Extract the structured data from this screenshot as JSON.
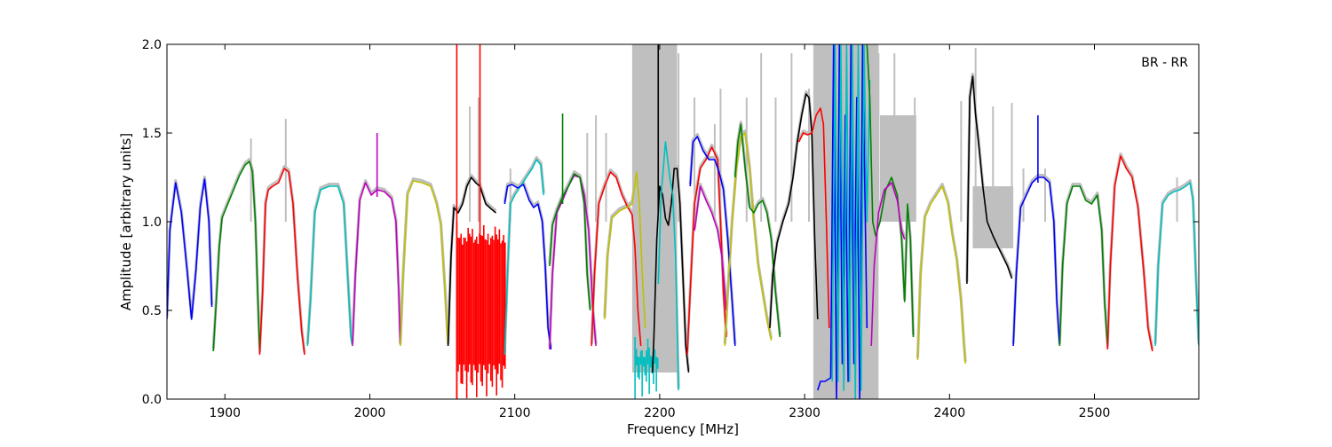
{
  "chart_data": {
    "type": "line",
    "annotation": "BR - RR",
    "xlabel": "Frequency [MHz]",
    "ylabel": "Amplitude [arbitrary units]",
    "xlim": [
      1860,
      2572
    ],
    "ylim": [
      0.0,
      2.0
    ],
    "x_ticks": [
      1900,
      2000,
      2100,
      2200,
      2300,
      2400,
      2500
    ],
    "x_tick_labels": [
      "1900",
      "2000",
      "2100",
      "2200",
      "2300",
      "2400",
      "2500"
    ],
    "y_ticks": [
      0.0,
      0.5,
      1.0,
      1.5,
      2.0
    ],
    "y_tick_labels": [
      "0.0",
      "0.5",
      "1.0",
      "1.5",
      "2.0"
    ],
    "grid": false,
    "reference_color": "#bfbfbf",
    "reference_spikes": [
      [
        1918,
        1.47
      ],
      [
        1942,
        1.58
      ],
      [
        2069,
        1.65
      ],
      [
        2075,
        1.7
      ],
      [
        2097,
        1.3
      ],
      [
        2150,
        1.5
      ],
      [
        2156,
        1.6
      ],
      [
        2163,
        1.5
      ],
      [
        2190,
        1.6
      ],
      [
        2205,
        2.0
      ],
      [
        2213,
        1.95
      ],
      [
        2224,
        1.7
      ],
      [
        2238,
        1.55
      ],
      [
        2242,
        1.75
      ],
      [
        2260,
        1.7
      ],
      [
        2270,
        1.95
      ],
      [
        2280,
        1.7
      ],
      [
        2291,
        1.95
      ],
      [
        2303,
        1.75
      ],
      [
        2351,
        1.95
      ],
      [
        2362,
        1.95
      ],
      [
        2376,
        1.7
      ],
      [
        2408,
        1.68
      ],
      [
        2418,
        1.98
      ],
      [
        2430,
        1.65
      ],
      [
        2443,
        1.67
      ],
      [
        2451,
        1.3
      ],
      [
        2466,
        1.3
      ],
      [
        2557,
        1.25
      ]
    ],
    "reference_noise_bands": [
      {
        "x": [
          2181,
          2212
        ],
        "y": [
          0.15,
          2.0
        ]
      },
      {
        "x": [
          2306,
          2351
        ],
        "y": [
          0.0,
          2.0
        ]
      },
      {
        "x": [
          2352,
          2377
        ],
        "y": [
          1.0,
          1.6
        ]
      },
      {
        "x": [
          2416,
          2444
        ],
        "y": [
          0.85,
          1.2
        ]
      }
    ],
    "noise_bands": [
      {
        "name": "",
        "color": "#ff0000",
        "x": [
          2060,
          2094
        ],
        "y": [
          0.0,
          1.0
        ]
      },
      {
        "name": "",
        "color": "#00bfbf",
        "x": [
          2183,
          2199
        ],
        "y": [
          0.0,
          0.35
        ]
      }
    ],
    "spikes": [
      {
        "color": "#ff0000",
        "x": 2060,
        "y": [
          0.0,
          2.0
        ]
      },
      {
        "color": "#ff0000",
        "x": 2076,
        "y": [
          0.2,
          2.0
        ]
      },
      {
        "color": "#bf00bf",
        "x": 2005,
        "y": [
          1.14,
          1.5
        ]
      },
      {
        "color": "#008000",
        "x": 2133,
        "y": [
          1.1,
          1.61
        ]
      },
      {
        "color": "#0000ff",
        "x": 2461,
        "y": [
          1.22,
          1.6
        ]
      },
      {
        "color": "#000000",
        "x": 2199,
        "y": [
          1.05,
          2.0
        ]
      }
    ],
    "series": [
      {
        "name": "",
        "color": "#0000ff",
        "x": [
          1860,
          1862,
          1866,
          1870,
          1874,
          1877,
          1880,
          1883,
          1886,
          1889,
          1891
        ],
        "y": [
          0.45,
          0.95,
          1.22,
          1.05,
          0.72,
          0.45,
          0.72,
          1.08,
          1.24,
          1.0,
          0.52
        ]
      },
      {
        "name": "",
        "color": "#008000",
        "x": [
          1892,
          1894,
          1896,
          1898,
          1902,
          1906,
          1910,
          1914,
          1917,
          1919,
          1921,
          1923,
          1924
        ],
        "y": [
          0.27,
          0.55,
          0.85,
          1.02,
          1.1,
          1.18,
          1.26,
          1.32,
          1.34,
          1.28,
          1.0,
          0.5,
          0.28
        ]
      },
      {
        "name": "",
        "color": "#ff0000",
        "x": [
          1924,
          1926,
          1928,
          1930,
          1933,
          1937,
          1941,
          1944,
          1947,
          1950,
          1953,
          1955
        ],
        "y": [
          0.25,
          0.6,
          1.1,
          1.18,
          1.2,
          1.22,
          1.3,
          1.28,
          1.1,
          0.7,
          0.38,
          0.25
        ]
      },
      {
        "name": "",
        "color": "#00bfbf",
        "x": [
          1957,
          1959,
          1962,
          1966,
          1972,
          1978,
          1982,
          1985,
          1987,
          1988
        ],
        "y": [
          0.3,
          0.55,
          1.05,
          1.18,
          1.2,
          1.2,
          1.1,
          0.65,
          0.35,
          0.3
        ]
      },
      {
        "name": "",
        "color": "#bf00bf",
        "x": [
          1988,
          1990,
          1993,
          1997,
          2001,
          2005,
          2010,
          2015,
          2018,
          2020,
          2021
        ],
        "y": [
          0.3,
          0.7,
          1.12,
          1.22,
          1.15,
          1.18,
          1.17,
          1.13,
          1.0,
          0.6,
          0.3
        ]
      },
      {
        "name": "",
        "color": "#bfbf00",
        "x": [
          2021,
          2023,
          2026,
          2030,
          2036,
          2042,
          2046,
          2049,
          2052,
          2054
        ],
        "y": [
          0.3,
          0.7,
          1.15,
          1.23,
          1.22,
          1.2,
          1.1,
          0.98,
          0.6,
          0.3
        ]
      },
      {
        "name": "",
        "color": "#000000",
        "x": [
          2054,
          2056,
          2058,
          2061,
          2064,
          2067,
          2070,
          2073,
          2076,
          2080,
          2084,
          2087
        ],
        "y": [
          0.3,
          0.8,
          1.08,
          1.05,
          1.1,
          1.2,
          1.25,
          1.22,
          1.2,
          1.1,
          1.07,
          1.05
        ]
      },
      {
        "name": "",
        "color": "#00bfbf",
        "x": [
          2093,
          2095,
          2097,
          2100,
          2104,
          2108,
          2112,
          2115,
          2118,
          2120
        ],
        "y": [
          0.25,
          0.7,
          1.1,
          1.15,
          1.2,
          1.25,
          1.3,
          1.35,
          1.32,
          1.15
        ]
      },
      {
        "name": "",
        "color": "#0000ff",
        "x": [
          2093,
          2095,
          2098,
          2102,
          2106,
          2110,
          2113,
          2116,
          2119,
          2121,
          2123,
          2125
        ],
        "y": [
          1.1,
          1.2,
          1.21,
          1.19,
          1.21,
          1.12,
          1.08,
          1.1,
          1.0,
          0.75,
          0.4,
          0.28
        ]
      },
      {
        "name": "",
        "color": "#bf00bf",
        "x": [
          2124,
          2126,
          2129,
          2133,
          2137,
          2141,
          2145,
          2148,
          2151,
          2154,
          2156
        ],
        "y": [
          0.28,
          0.7,
          1.05,
          1.12,
          1.2,
          1.26,
          1.25,
          1.15,
          0.95,
          0.5,
          0.3
        ]
      },
      {
        "name": "",
        "color": "#008000",
        "x": [
          2124,
          2126,
          2129,
          2133,
          2137,
          2141,
          2145,
          2148,
          2150,
          2152
        ],
        "y": [
          0.75,
          0.98,
          1.06,
          1.14,
          1.2,
          1.27,
          1.25,
          1.1,
          0.7,
          0.5
        ]
      },
      {
        "name": "",
        "color": "#ff0000",
        "x": [
          2153,
          2155,
          2158,
          2162,
          2166,
          2170,
          2174,
          2178,
          2181,
          2183,
          2185,
          2187
        ],
        "y": [
          0.3,
          0.7,
          1.1,
          1.2,
          1.28,
          1.25,
          1.15,
          1.08,
          1.04,
          0.85,
          0.5,
          0.3
        ]
      },
      {
        "name": "",
        "color": "#bfbf00",
        "x": [
          2162,
          2164,
          2167,
          2172,
          2177,
          2181,
          2184,
          2186,
          2188,
          2190
        ],
        "y": [
          0.45,
          0.8,
          1.02,
          1.06,
          1.08,
          1.1,
          1.28,
          1.1,
          0.7,
          0.4
        ]
      },
      {
        "name": "",
        "color": "#000000",
        "x": [
          2195,
          2196,
          2198,
          2200,
          2202,
          2204,
          2206,
          2208,
          2210,
          2212,
          2214,
          2216,
          2218,
          2220
        ],
        "y": [
          0.15,
          0.35,
          0.9,
          1.2,
          1.15,
          1.02,
          0.98,
          1.1,
          1.3,
          1.3,
          1.1,
          0.7,
          0.3,
          0.15
        ]
      },
      {
        "name": "",
        "color": "#00bfbf",
        "x": [
          2199,
          2201,
          2204,
          2207,
          2209,
          2211,
          2213
        ],
        "y": [
          0.65,
          1.15,
          1.45,
          1.25,
          1.15,
          0.8,
          0.05
        ]
      },
      {
        "name": "",
        "color": "#ff0000",
        "x": [
          2219,
          2221,
          2224,
          2228,
          2232,
          2236,
          2240,
          2242,
          2244,
          2246
        ],
        "y": [
          0.25,
          0.6,
          1.1,
          1.3,
          1.35,
          1.42,
          1.35,
          1.0,
          0.6,
          0.35
        ]
      },
      {
        "name": "",
        "color": "#0000ff",
        "x": [
          2221,
          2223,
          2226,
          2230,
          2234,
          2238,
          2241,
          2244,
          2247,
          2250,
          2252
        ],
        "y": [
          1.2,
          1.45,
          1.48,
          1.4,
          1.35,
          1.35,
          1.28,
          1.18,
          0.9,
          0.55,
          0.3
        ]
      },
      {
        "name": "",
        "color": "#bf00bf",
        "x": [
          2224,
          2228,
          2232,
          2236,
          2240,
          2243,
          2246
        ],
        "y": [
          0.95,
          1.2,
          1.12,
          1.05,
          0.95,
          0.8,
          0.5
        ]
      },
      {
        "name": "",
        "color": "#bfbf00",
        "x": [
          2245,
          2247,
          2250,
          2253,
          2256,
          2259,
          2262,
          2265,
          2268,
          2271,
          2274,
          2277
        ],
        "y": [
          0.3,
          0.6,
          1.0,
          1.3,
          1.48,
          1.5,
          1.3,
          1.0,
          0.75,
          0.6,
          0.45,
          0.33
        ]
      },
      {
        "name": "",
        "color": "#008000",
        "x": [
          2252,
          2254,
          2256,
          2259,
          2262,
          2265,
          2268,
          2271,
          2274,
          2277,
          2280,
          2283
        ],
        "y": [
          1.25,
          1.45,
          1.55,
          1.3,
          1.08,
          1.05,
          1.1,
          1.12,
          1.05,
          0.9,
          0.6,
          0.35
        ]
      },
      {
        "name": "",
        "color": "#000000",
        "x": [
          2276,
          2278,
          2281,
          2285,
          2289,
          2292,
          2295,
          2298,
          2301,
          2303,
          2305,
          2307,
          2309
        ],
        "y": [
          0.4,
          0.7,
          0.88,
          1.0,
          1.1,
          1.25,
          1.45,
          1.6,
          1.72,
          1.7,
          1.5,
          0.9,
          0.45
        ]
      },
      {
        "name": "",
        "color": "#ff0000",
        "x": [
          2296,
          2299,
          2302,
          2305,
          2308,
          2311,
          2313,
          2315,
          2317
        ],
        "y": [
          1.45,
          1.5,
          1.49,
          1.5,
          1.6,
          1.64,
          1.55,
          1.0,
          0.4
        ]
      },
      {
        "name": "",
        "color": "#0000ff",
        "x": [
          2309,
          2311,
          2314,
          2318,
          2320,
          2322,
          2324,
          2326,
          2328,
          2330,
          2332,
          2334,
          2336,
          2338,
          2340,
          2343
        ],
        "y": [
          0.05,
          0.1,
          0.1,
          0.12,
          2.0,
          0.0,
          2.0,
          0.2,
          1.6,
          0.1,
          2.0,
          0.2,
          1.7,
          0.0,
          2.0,
          0.4
        ]
      },
      {
        "name": "",
        "color": "#00bfbf",
        "x": [
          2319,
          2321,
          2323,
          2325,
          2327,
          2329,
          2331,
          2333,
          2335,
          2337,
          2339,
          2341,
          2343,
          2345
        ],
        "y": [
          0.1,
          2.0,
          0.1,
          2.0,
          0.05,
          2.0,
          0.1,
          2.0,
          0.0,
          2.0,
          0.05,
          2.0,
          1.0,
          1.8
        ]
      },
      {
        "name": "",
        "color": "#008000",
        "x": [
          2343,
          2345,
          2347,
          2349,
          2352,
          2356,
          2360,
          2364,
          2367,
          2369,
          2371,
          2373,
          2375
        ],
        "y": [
          2.0,
          1.7,
          1.0,
          0.92,
          1.0,
          1.18,
          1.25,
          1.15,
          0.9,
          0.55,
          1.1,
          0.9,
          0.35
        ]
      },
      {
        "name": "",
        "color": "#bf00bf",
        "x": [
          2346,
          2348,
          2351,
          2355,
          2360,
          2364,
          2367,
          2369
        ],
        "y": [
          0.3,
          0.75,
          1.05,
          1.18,
          1.22,
          1.12,
          0.95,
          0.9
        ]
      },
      {
        "name": "",
        "color": "#bfbf00",
        "x": [
          2378,
          2380,
          2383,
          2387,
          2391,
          2395,
          2399,
          2402,
          2405,
          2408,
          2410,
          2411
        ],
        "y": [
          0.22,
          0.7,
          1.02,
          1.1,
          1.15,
          1.2,
          1.1,
          0.92,
          0.78,
          0.55,
          0.3,
          0.2
        ]
      },
      {
        "name": "",
        "color": "#000000",
        "x": [
          2412,
          2413,
          2414,
          2416,
          2418,
          2420,
          2423,
          2426,
          2430,
          2434,
          2437,
          2440,
          2443
        ],
        "y": [
          0.65,
          1.2,
          1.7,
          1.82,
          1.6,
          1.45,
          1.2,
          1.0,
          0.92,
          0.85,
          0.8,
          0.75,
          0.68
        ]
      },
      {
        "name": "",
        "color": "#0000ff",
        "x": [
          2444,
          2446,
          2449,
          2453,
          2457,
          2461,
          2465,
          2469,
          2472,
          2474,
          2476
        ],
        "y": [
          0.3,
          0.7,
          1.08,
          1.15,
          1.22,
          1.25,
          1.25,
          1.22,
          1.0,
          0.55,
          0.3
        ]
      },
      {
        "name": "",
        "color": "#008000",
        "x": [
          2476,
          2478,
          2481,
          2485,
          2490,
          2494,
          2498,
          2502,
          2505,
          2507,
          2509
        ],
        "y": [
          0.3,
          0.75,
          1.1,
          1.2,
          1.2,
          1.12,
          1.1,
          1.15,
          0.95,
          0.55,
          0.3
        ]
      },
      {
        "name": "",
        "color": "#ff0000",
        "x": [
          2509,
          2511,
          2514,
          2518,
          2522,
          2526,
          2530,
          2534,
          2537,
          2540
        ],
        "y": [
          0.28,
          0.75,
          1.2,
          1.37,
          1.3,
          1.25,
          1.08,
          0.72,
          0.4,
          0.27
        ]
      },
      {
        "name": "",
        "color": "#00bfbf",
        "x": [
          2542,
          2544,
          2547,
          2551,
          2555,
          2559,
          2563,
          2566,
          2568,
          2570,
          2572
        ],
        "y": [
          0.3,
          0.75,
          1.1,
          1.15,
          1.17,
          1.18,
          1.2,
          1.22,
          1.12,
          0.7,
          0.3
        ]
      }
    ]
  }
}
